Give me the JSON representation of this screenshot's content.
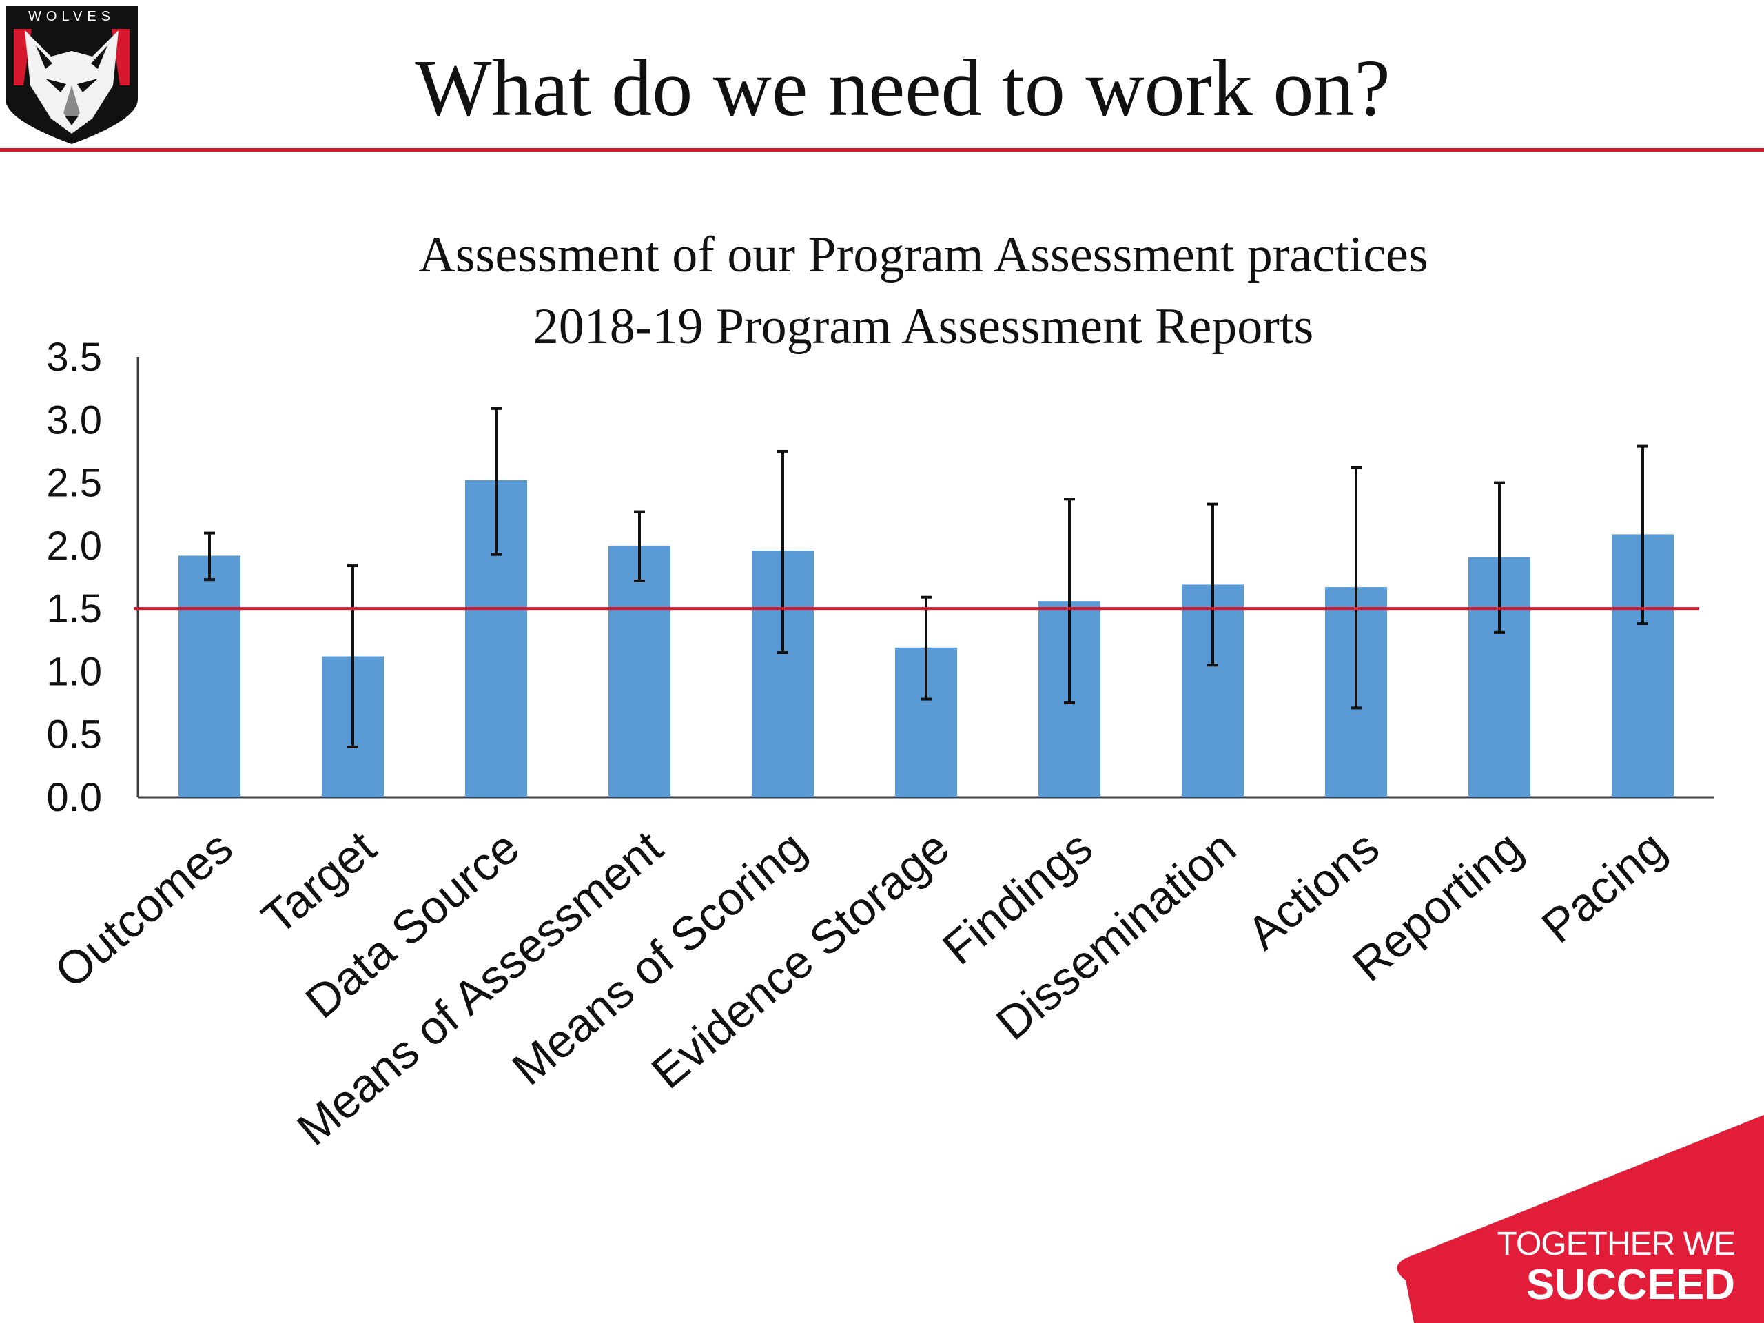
{
  "slide": {
    "title": "What do we need to work on?",
    "logo_text": "WOLVES",
    "tagline_line1": "TOGETHER WE",
    "tagline_line2": "SUCCEED",
    "accent_color": "#d7192d",
    "logo_icon": "wolf-head-icon"
  },
  "chart_data": {
    "type": "bar",
    "title_line1": "Assessment of our Program Assessment practices",
    "title_line2": "2018-19 Program Assessment Reports",
    "categories": [
      "Outcomes",
      "Target",
      "Data Source",
      "Means of Assessment",
      "Means of Scoring",
      "Evidence Storage",
      "Findings",
      "Dissemination",
      "Actions",
      "Reporting",
      "Pacing"
    ],
    "values": [
      1.92,
      1.12,
      2.52,
      2.0,
      1.96,
      1.19,
      1.56,
      1.69,
      1.67,
      1.91,
      2.09
    ],
    "error_low": [
      1.73,
      0.4,
      1.93,
      1.72,
      1.15,
      0.78,
      0.75,
      1.05,
      0.71,
      1.31,
      1.38
    ],
    "error_high": [
      2.1,
      1.84,
      3.09,
      2.27,
      2.75,
      1.59,
      2.37,
      2.33,
      2.62,
      2.5,
      2.79
    ],
    "yticks": [
      "0.0",
      "0.5",
      "1.0",
      "1.5",
      "2.0",
      "2.5",
      "3.0",
      "3.5"
    ],
    "ylim": [
      0,
      3.5
    ],
    "reference_line": 1.5,
    "bar_color": "#5b9bd5",
    "reference_color": "#d7192d",
    "grid": false,
    "legend": "none"
  }
}
